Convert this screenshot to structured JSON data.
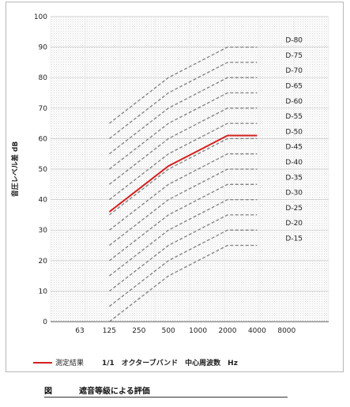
{
  "chart_data": {
    "type": "line",
    "ylabel": "音圧レベル差 dB",
    "xlabel": "1/1　オクターブバンド　中心周波数　Hz",
    "ylim": [
      0,
      100
    ],
    "y_ticks": [
      "0",
      "10",
      "20",
      "30",
      "40",
      "50",
      "60",
      "70",
      "80",
      "90",
      "100"
    ],
    "categories": [
      "63",
      "125",
      "250",
      "500",
      "1000",
      "2000",
      "4000",
      "8000"
    ],
    "grid": true,
    "reference_curves": [
      {
        "name": "D-80",
        "values": [
          null,
          65,
          72.5,
          80,
          85,
          90,
          90,
          null
        ]
      },
      {
        "name": "D-75",
        "values": [
          null,
          60,
          67.5,
          75,
          80,
          85,
          85,
          null
        ]
      },
      {
        "name": "D-70",
        "values": [
          null,
          55,
          62.5,
          70,
          75,
          80,
          80,
          null
        ]
      },
      {
        "name": "D-65",
        "values": [
          null,
          50,
          57.5,
          65,
          70,
          75,
          75,
          null
        ]
      },
      {
        "name": "D-60",
        "values": [
          null,
          45,
          52.5,
          60,
          65,
          70,
          70,
          null
        ]
      },
      {
        "name": "D-55",
        "values": [
          null,
          40,
          47.5,
          55,
          60,
          65,
          65,
          null
        ]
      },
      {
        "name": "D-50",
        "values": [
          null,
          35,
          42.5,
          50,
          55,
          60,
          60,
          null
        ]
      },
      {
        "name": "D-45",
        "values": [
          null,
          30,
          37.5,
          45,
          50,
          55,
          55,
          null
        ]
      },
      {
        "name": "D-40",
        "values": [
          null,
          25,
          32.5,
          40,
          45,
          50,
          50,
          null
        ]
      },
      {
        "name": "D-35",
        "values": [
          null,
          20,
          27.5,
          35,
          40,
          45,
          45,
          null
        ]
      },
      {
        "name": "D-30",
        "values": [
          null,
          15,
          22.5,
          30,
          35,
          40,
          40,
          null
        ]
      },
      {
        "name": "D-25",
        "values": [
          null,
          10,
          17.5,
          25,
          30,
          35,
          35,
          null
        ]
      },
      {
        "name": "D-20",
        "values": [
          null,
          5,
          12.5,
          20,
          25,
          30,
          30,
          null
        ]
      },
      {
        "name": "D-15",
        "values": [
          null,
          0,
          7.5,
          15,
          20,
          25,
          25,
          null
        ]
      }
    ],
    "series": [
      {
        "name": "測定結果",
        "color": "#d42020",
        "values": [
          null,
          36,
          43.5,
          51,
          56,
          61,
          61,
          null
        ]
      }
    ],
    "reference_color": "#7f7f7f",
    "legend": {
      "label": "測定結果",
      "position": "bottom-left"
    }
  },
  "caption": {
    "figure": "図",
    "title": "遮音等級による評価"
  }
}
